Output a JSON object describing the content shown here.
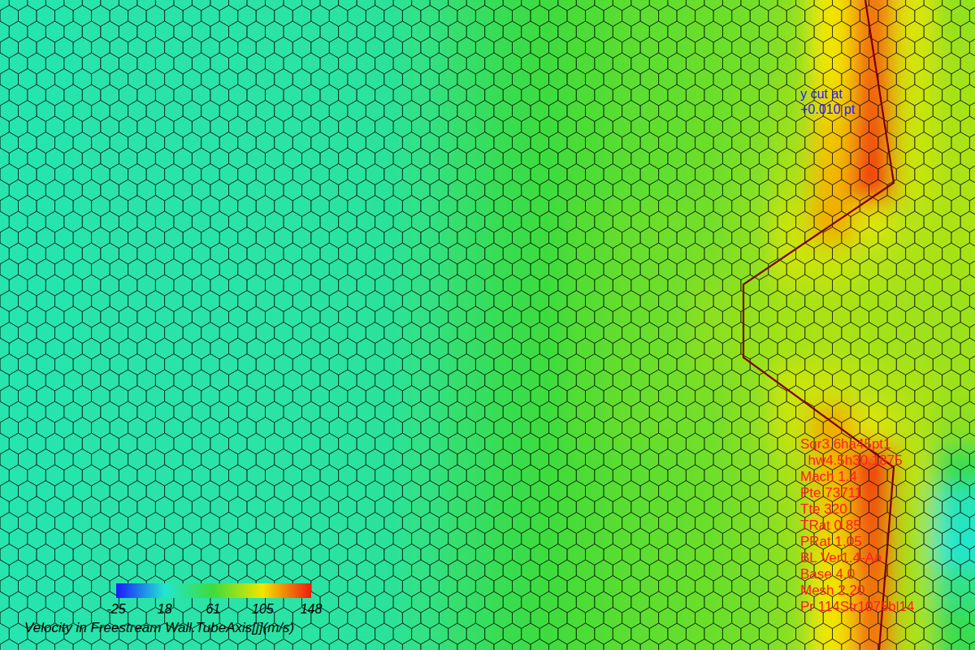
{
  "chart_data": {
    "type": "heatmap",
    "title": "Velocity in Freestream Wall.TubeAxis[j](m/s)",
    "tick_labels": false,
    "colorbar": {
      "range": [
        -25,
        148
      ],
      "ticks": [
        -25,
        18,
        61,
        105,
        148
      ]
    },
    "cut_note": [
      "y cut at",
      "+0.010 pt"
    ],
    "case_info": [
      "Sqr3.6ha45pt1",
      "  hw4.5h30.1875",
      "Mach 1.4",
      "Pte 73711",
      "Tte 320",
      "TRat 0.85",
      "PRat 1.05",
      "BL Ver1.4-Aa",
      "Base 4.0",
      "Mesh 2.20",
      "Pr 114Str1075bl14"
    ],
    "cells": [
      [
        28,
        28,
        29,
        29,
        30,
        30,
        31,
        31,
        32,
        34,
        40,
        48,
        55,
        60,
        65,
        68,
        70,
        72,
        74,
        80,
        105,
        130,
        100,
        82
      ],
      [
        28,
        28,
        29,
        29,
        30,
        30,
        31,
        31,
        32,
        34,
        40,
        48,
        55,
        60,
        65,
        68,
        70,
        72,
        74,
        80,
        105,
        132,
        98,
        85
      ],
      [
        28,
        28,
        29,
        29,
        30,
        30,
        31,
        31,
        32,
        34,
        40,
        48,
        55,
        60,
        65,
        68,
        70,
        72,
        75,
        82,
        108,
        135,
        96,
        86
      ],
      [
        28,
        28,
        29,
        29,
        30,
        30,
        31,
        31,
        32,
        34,
        40,
        48,
        55,
        60,
        65,
        68,
        70,
        72,
        76,
        84,
        112,
        138,
        95,
        88
      ],
      [
        28,
        28,
        29,
        29,
        30,
        30,
        31,
        31,
        32,
        34,
        40,
        48,
        55,
        60,
        65,
        68,
        70,
        73,
        77,
        88,
        115,
        142,
        95,
        88
      ],
      [
        28,
        28,
        29,
        29,
        30,
        30,
        31,
        31,
        32,
        34,
        40,
        48,
        55,
        60,
        67,
        71,
        73,
        74,
        80,
        95,
        118,
        100,
        90,
        88
      ],
      [
        28,
        28,
        29,
        29,
        30,
        30,
        31,
        31,
        32,
        34,
        40,
        48,
        55,
        60,
        67,
        71,
        73,
        76,
        80,
        95,
        95,
        90,
        88,
        86
      ],
      [
        28,
        28,
        29,
        29,
        30,
        30,
        31,
        31,
        32,
        34,
        40,
        48,
        55,
        60,
        67,
        71,
        73,
        80,
        82,
        86,
        88,
        86,
        85,
        84
      ],
      [
        28,
        28,
        29,
        29,
        30,
        30,
        31,
        31,
        32,
        34,
        40,
        48,
        55,
        60,
        67,
        71,
        73,
        80,
        82,
        86,
        88,
        86,
        85,
        84
      ],
      [
        28,
        28,
        29,
        29,
        30,
        30,
        31,
        31,
        32,
        34,
        40,
        48,
        55,
        60,
        67,
        71,
        73,
        76,
        80,
        95,
        95,
        90,
        88,
        84
      ],
      [
        28,
        28,
        29,
        29,
        30,
        30,
        31,
        31,
        32,
        34,
        40,
        48,
        55,
        60,
        67,
        71,
        73,
        74,
        80,
        95,
        118,
        100,
        90,
        80
      ],
      [
        28,
        28,
        29,
        29,
        30,
        30,
        31,
        31,
        32,
        34,
        40,
        48,
        55,
        60,
        65,
        68,
        70,
        73,
        77,
        88,
        115,
        142,
        92,
        55
      ],
      [
        28,
        28,
        29,
        29,
        30,
        30,
        31,
        31,
        32,
        34,
        40,
        48,
        55,
        60,
        65,
        68,
        70,
        72,
        76,
        84,
        112,
        138,
        88,
        25
      ],
      [
        28,
        28,
        29,
        29,
        30,
        30,
        31,
        31,
        32,
        34,
        40,
        48,
        55,
        60,
        65,
        68,
        70,
        72,
        75,
        82,
        108,
        135,
        86,
        20
      ],
      [
        28,
        28,
        29,
        29,
        30,
        30,
        31,
        31,
        32,
        34,
        40,
        48,
        55,
        60,
        65,
        68,
        70,
        72,
        74,
        80,
        105,
        132,
        86,
        40
      ],
      [
        28,
        28,
        29,
        29,
        30,
        30,
        31,
        31,
        32,
        34,
        40,
        48,
        55,
        60,
        65,
        68,
        70,
        72,
        74,
        80,
        105,
        130,
        88,
        55
      ]
    ]
  }
}
